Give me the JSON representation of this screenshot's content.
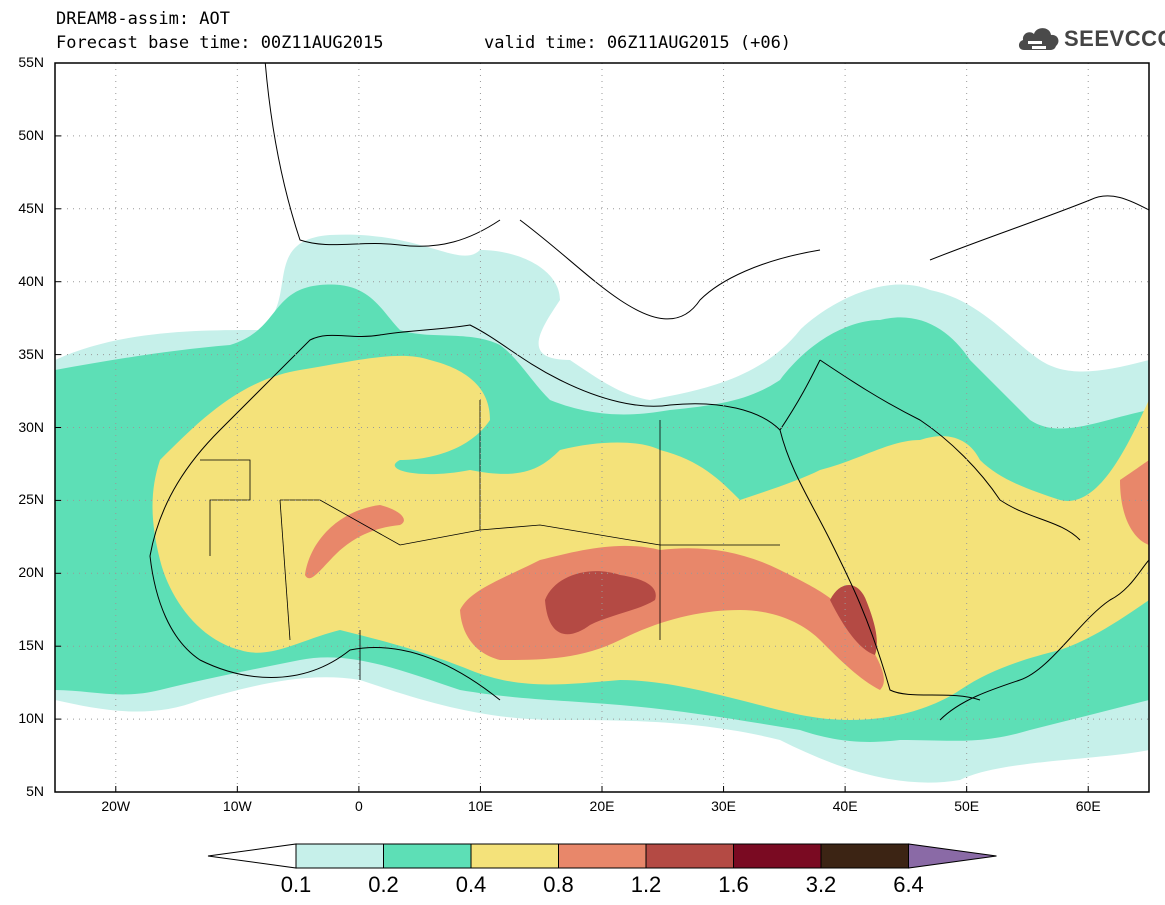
{
  "header": {
    "title": "DREAM8-assim: AOT",
    "base_time": "Forecast base time: 00Z11AUG2015",
    "valid_time": "valid time: 06Z11AUG2015 (+06)"
  },
  "logo": {
    "text": "SEEVCCC",
    "icon": "cloud-icon"
  },
  "map": {
    "variable": "AOT",
    "lat_labels": [
      "55N",
      "50N",
      "45N",
      "40N",
      "35N",
      "30N",
      "25N",
      "20N",
      "15N",
      "10N",
      "5N"
    ],
    "lon_labels": [
      "20W",
      "10W",
      "0",
      "10E",
      "20E",
      "30E",
      "40E",
      "50E",
      "60E"
    ],
    "lon_range": [
      -25,
      65
    ],
    "lat_range": [
      5,
      55
    ],
    "grid": "dotted"
  },
  "colorbar": {
    "labels": [
      "0.1",
      "0.2",
      "0.4",
      "0.8",
      "1.2",
      "1.6",
      "3.2",
      "6.4"
    ],
    "colors": [
      "#c6f0ea",
      "#5ddfb6",
      "#f4e27a",
      "#e8876a",
      "#b44a44",
      "#7a0a22",
      "#3c2414",
      "#8a6aa6"
    ],
    "under_color": "#ffffff"
  }
}
